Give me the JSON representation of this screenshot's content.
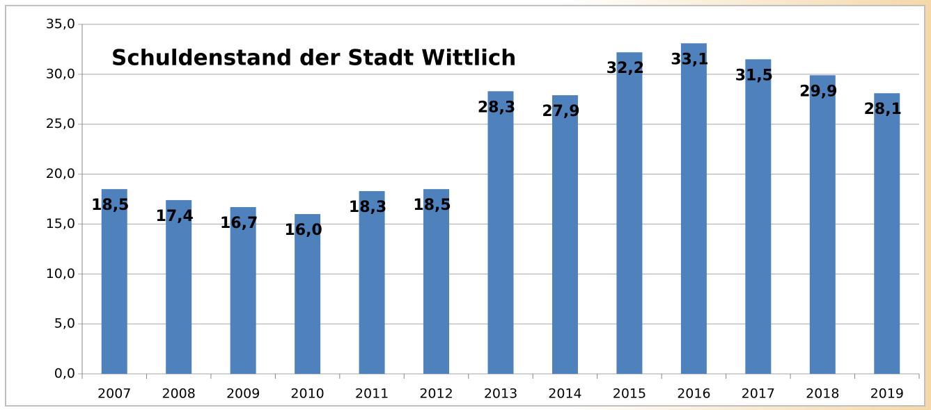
{
  "chart_data": {
    "type": "bar",
    "title": "Schuldenstand der Stadt Wittlich",
    "categories": [
      "2007",
      "2008",
      "2009",
      "2010",
      "2011",
      "2012",
      "2013",
      "2014",
      "2015",
      "2016",
      "2017",
      "2018",
      "2019"
    ],
    "values": [
      18.5,
      17.4,
      16.7,
      16.0,
      18.3,
      18.5,
      28.3,
      27.9,
      32.2,
      33.1,
      31.5,
      29.9,
      28.1
    ],
    "value_labels": [
      "18,5",
      "17,4",
      "16,7",
      "16,0",
      "18,3",
      "18,5",
      "28,3",
      "27,9",
      "32,2",
      "33,1",
      "31,5",
      "29,9",
      "28,1"
    ],
    "color": "#4f81bd",
    "ylim": [
      0,
      35
    ],
    "yticks": [
      {
        "value": 0,
        "label": "0,0"
      },
      {
        "value": 5,
        "label": "5,0"
      },
      {
        "value": 10,
        "label": "10,0"
      },
      {
        "value": 15,
        "label": "15,0"
      },
      {
        "value": 20,
        "label": "20,0"
      },
      {
        "value": 25,
        "label": "25,0"
      },
      {
        "value": 30,
        "label": "30,0"
      },
      {
        "value": 35,
        "label": "35,0"
      }
    ],
    "grid": true
  }
}
